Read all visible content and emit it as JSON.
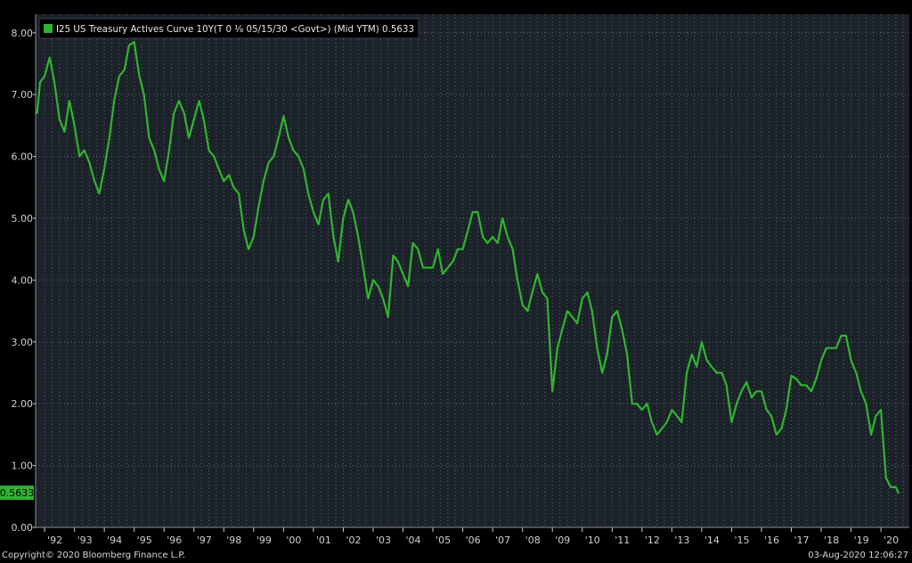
{
  "chart_data": {
    "type": "line",
    "title": "",
    "xlabel": "",
    "ylabel": "",
    "legend": {
      "placement": "top-left",
      "label": "I25 US Treasury Actives Curve 10Y(T 0 ⅛ 05/15/30 <Govt>) (Mid YTM) 0.5633"
    },
    "grid": true,
    "ylim": [
      0,
      8.3
    ],
    "xlim": [
      1991.7,
      2020.95
    ],
    "y_ticks": [
      {
        "v": 0,
        "label": "0.00"
      },
      {
        "v": 1,
        "label": "1.00"
      },
      {
        "v": 2,
        "label": "2.00"
      },
      {
        "v": 3,
        "label": "3.00"
      },
      {
        "v": 4,
        "label": "4.00"
      },
      {
        "v": 5,
        "label": "5.00"
      },
      {
        "v": 6,
        "label": "6.00"
      },
      {
        "v": 7,
        "label": "7.00"
      },
      {
        "v": 8,
        "label": "8.00"
      }
    ],
    "x_ticks": [
      {
        "v": 1992,
        "label": "'92"
      },
      {
        "v": 1993,
        "label": "'93"
      },
      {
        "v": 1994,
        "label": "'94"
      },
      {
        "v": 1995,
        "label": "'95"
      },
      {
        "v": 1996,
        "label": "'96"
      },
      {
        "v": 1997,
        "label": "'97"
      },
      {
        "v": 1998,
        "label": "'98"
      },
      {
        "v": 1999,
        "label": "'99"
      },
      {
        "v": 2000,
        "label": "'00"
      },
      {
        "v": 2001,
        "label": "'01"
      },
      {
        "v": 2002,
        "label": "'02"
      },
      {
        "v": 2003,
        "label": "'03"
      },
      {
        "v": 2004,
        "label": "'04"
      },
      {
        "v": 2005,
        "label": "'05"
      },
      {
        "v": 2006,
        "label": "'06"
      },
      {
        "v": 2007,
        "label": "'07"
      },
      {
        "v": 2008,
        "label": "'08"
      },
      {
        "v": 2009,
        "label": "'09"
      },
      {
        "v": 2010,
        "label": "'10"
      },
      {
        "v": 2011,
        "label": "'11"
      },
      {
        "v": 2012,
        "label": "'12"
      },
      {
        "v": 2013,
        "label": "'13"
      },
      {
        "v": 2014,
        "label": "'14"
      },
      {
        "v": 2015,
        "label": "'15"
      },
      {
        "v": 2016,
        "label": "'16"
      },
      {
        "v": 2017,
        "label": "'17"
      },
      {
        "v": 2018,
        "label": "'18"
      },
      {
        "v": 2019,
        "label": "'19"
      },
      {
        "v": 2020,
        "label": "'20"
      }
    ],
    "last_value_label": "0.5633",
    "colors": {
      "background": "#000000",
      "plot_background": "#1c2229",
      "grid": "#5a6470",
      "line": "#2fb52f",
      "axis_text": "#d0d0d0"
    },
    "series": [
      {
        "name": "I25 US Treasury Actives Curve 10Y",
        "points": [
          [
            1991.75,
            6.7
          ],
          [
            1991.85,
            7.2
          ],
          [
            1992.0,
            7.3
          ],
          [
            1992.17,
            7.6
          ],
          [
            1992.33,
            7.2
          ],
          [
            1992.5,
            6.6
          ],
          [
            1992.67,
            6.4
          ],
          [
            1992.83,
            6.9
          ],
          [
            1993.0,
            6.5
          ],
          [
            1993.17,
            6.0
          ],
          [
            1993.33,
            6.1
          ],
          [
            1993.5,
            5.9
          ],
          [
            1993.67,
            5.6
          ],
          [
            1993.83,
            5.4
          ],
          [
            1994.0,
            5.8
          ],
          [
            1994.17,
            6.3
          ],
          [
            1994.33,
            6.9
          ],
          [
            1994.5,
            7.3
          ],
          [
            1994.67,
            7.4
          ],
          [
            1994.83,
            7.8
          ],
          [
            1995.0,
            7.85
          ],
          [
            1995.17,
            7.3
          ],
          [
            1995.33,
            7.0
          ],
          [
            1995.5,
            6.3
          ],
          [
            1995.67,
            6.1
          ],
          [
            1995.83,
            5.8
          ],
          [
            1996.0,
            5.6
          ],
          [
            1996.17,
            6.1
          ],
          [
            1996.33,
            6.7
          ],
          [
            1996.5,
            6.9
          ],
          [
            1996.67,
            6.7
          ],
          [
            1996.83,
            6.3
          ],
          [
            1997.0,
            6.6
          ],
          [
            1997.17,
            6.9
          ],
          [
            1997.33,
            6.6
          ],
          [
            1997.5,
            6.1
          ],
          [
            1997.67,
            6.0
          ],
          [
            1997.83,
            5.8
          ],
          [
            1998.0,
            5.6
          ],
          [
            1998.17,
            5.7
          ],
          [
            1998.33,
            5.5
          ],
          [
            1998.5,
            5.4
          ],
          [
            1998.67,
            4.8
          ],
          [
            1998.83,
            4.5
          ],
          [
            1999.0,
            4.7
          ],
          [
            1999.17,
            5.2
          ],
          [
            1999.33,
            5.6
          ],
          [
            1999.5,
            5.9
          ],
          [
            1999.67,
            6.0
          ],
          [
            1999.83,
            6.3
          ],
          [
            2000.0,
            6.65
          ],
          [
            2000.17,
            6.3
          ],
          [
            2000.33,
            6.1
          ],
          [
            2000.5,
            6.0
          ],
          [
            2000.67,
            5.8
          ],
          [
            2000.83,
            5.4
          ],
          [
            2001.0,
            5.1
          ],
          [
            2001.17,
            4.9
          ],
          [
            2001.33,
            5.3
          ],
          [
            2001.5,
            5.4
          ],
          [
            2001.67,
            4.7
          ],
          [
            2001.83,
            4.3
          ],
          [
            2002.0,
            5.0
          ],
          [
            2002.17,
            5.3
          ],
          [
            2002.33,
            5.1
          ],
          [
            2002.5,
            4.7
          ],
          [
            2002.67,
            4.2
          ],
          [
            2002.83,
            3.7
          ],
          [
            2003.0,
            4.0
          ],
          [
            2003.17,
            3.9
          ],
          [
            2003.33,
            3.7
          ],
          [
            2003.5,
            3.4
          ],
          [
            2003.67,
            4.4
          ],
          [
            2003.83,
            4.3
          ],
          [
            2004.0,
            4.1
          ],
          [
            2004.17,
            3.9
          ],
          [
            2004.33,
            4.6
          ],
          [
            2004.5,
            4.5
          ],
          [
            2004.67,
            4.2
          ],
          [
            2004.83,
            4.2
          ],
          [
            2005.0,
            4.2
          ],
          [
            2005.17,
            4.5
          ],
          [
            2005.33,
            4.1
          ],
          [
            2005.5,
            4.2
          ],
          [
            2005.67,
            4.3
          ],
          [
            2005.83,
            4.5
          ],
          [
            2006.0,
            4.5
          ],
          [
            2006.17,
            4.8
          ],
          [
            2006.33,
            5.1
          ],
          [
            2006.5,
            5.1
          ],
          [
            2006.67,
            4.7
          ],
          [
            2006.83,
            4.6
          ],
          [
            2007.0,
            4.7
          ],
          [
            2007.17,
            4.6
          ],
          [
            2007.33,
            5.0
          ],
          [
            2007.5,
            4.7
          ],
          [
            2007.67,
            4.5
          ],
          [
            2007.83,
            4.0
          ],
          [
            2008.0,
            3.6
          ],
          [
            2008.17,
            3.5
          ],
          [
            2008.33,
            3.8
          ],
          [
            2008.5,
            4.1
          ],
          [
            2008.67,
            3.8
          ],
          [
            2008.83,
            3.7
          ],
          [
            2009.0,
            2.2
          ],
          [
            2009.17,
            2.9
          ],
          [
            2009.33,
            3.2
          ],
          [
            2009.5,
            3.5
          ],
          [
            2009.67,
            3.4
          ],
          [
            2009.83,
            3.3
          ],
          [
            2010.0,
            3.7
          ],
          [
            2010.17,
            3.8
          ],
          [
            2010.33,
            3.5
          ],
          [
            2010.5,
            2.9
          ],
          [
            2010.67,
            2.5
          ],
          [
            2010.83,
            2.8
          ],
          [
            2011.0,
            3.4
          ],
          [
            2011.17,
            3.5
          ],
          [
            2011.33,
            3.2
          ],
          [
            2011.5,
            2.8
          ],
          [
            2011.67,
            2.0
          ],
          [
            2011.83,
            2.0
          ],
          [
            2012.0,
            1.9
          ],
          [
            2012.17,
            2.0
          ],
          [
            2012.33,
            1.7
          ],
          [
            2012.5,
            1.5
          ],
          [
            2012.67,
            1.6
          ],
          [
            2012.83,
            1.7
          ],
          [
            2013.0,
            1.9
          ],
          [
            2013.17,
            1.8
          ],
          [
            2013.33,
            1.7
          ],
          [
            2013.5,
            2.5
          ],
          [
            2013.67,
            2.8
          ],
          [
            2013.83,
            2.6
          ],
          [
            2014.0,
            3.0
          ],
          [
            2014.17,
            2.7
          ],
          [
            2014.33,
            2.6
          ],
          [
            2014.5,
            2.5
          ],
          [
            2014.67,
            2.5
          ],
          [
            2014.83,
            2.3
          ],
          [
            2015.0,
            1.7
          ],
          [
            2015.17,
            2.0
          ],
          [
            2015.33,
            2.2
          ],
          [
            2015.5,
            2.35
          ],
          [
            2015.67,
            2.1
          ],
          [
            2015.83,
            2.2
          ],
          [
            2016.0,
            2.2
          ],
          [
            2016.17,
            1.9
          ],
          [
            2016.33,
            1.8
          ],
          [
            2016.5,
            1.5
          ],
          [
            2016.67,
            1.6
          ],
          [
            2016.83,
            1.9
          ],
          [
            2017.0,
            2.45
          ],
          [
            2017.17,
            2.4
          ],
          [
            2017.33,
            2.3
          ],
          [
            2017.5,
            2.3
          ],
          [
            2017.67,
            2.2
          ],
          [
            2017.83,
            2.4
          ],
          [
            2018.0,
            2.7
          ],
          [
            2018.17,
            2.9
          ],
          [
            2018.33,
            2.9
          ],
          [
            2018.5,
            2.9
          ],
          [
            2018.67,
            3.1
          ],
          [
            2018.83,
            3.1
          ],
          [
            2019.0,
            2.7
          ],
          [
            2019.17,
            2.5
          ],
          [
            2019.33,
            2.2
          ],
          [
            2019.5,
            2.0
          ],
          [
            2019.67,
            1.5
          ],
          [
            2019.83,
            1.8
          ],
          [
            2020.0,
            1.9
          ],
          [
            2020.17,
            0.8
          ],
          [
            2020.33,
            0.65
          ],
          [
            2020.5,
            0.65
          ],
          [
            2020.58,
            0.56
          ]
        ]
      }
    ]
  },
  "footer": {
    "copyright": "Copyright© 2020 Bloomberg Finance L.P.",
    "timestamp": "03-Aug-2020 12:06:27"
  }
}
